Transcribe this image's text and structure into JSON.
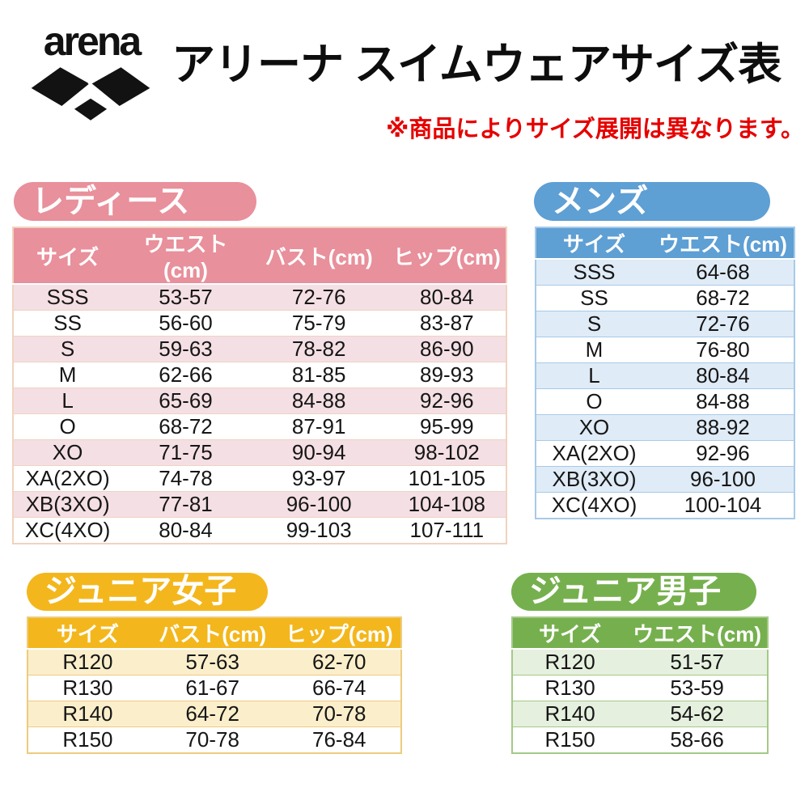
{
  "header": {
    "logo_text": "arena",
    "title": "アリーナ スイムウェアサイズ表",
    "note": "※商品によりサイズ展開は異なります。"
  },
  "colors": {
    "red": "#E60000",
    "pink": "#E8909B",
    "pink_light": "#F4DFE4",
    "pink_border": "#F0D3BF",
    "blue": "#5E9FD4",
    "blue_light": "#DFEBF6",
    "blue_border": "#A8CAE8",
    "gold": "#F3B71D",
    "gold_light": "#FBEFCB",
    "gold_border": "#EECB7E",
    "green": "#76B04E",
    "green_light": "#E6F0DF",
    "green_border": "#A3C987"
  },
  "tables": {
    "ladies": {
      "label": "レディース",
      "columns": [
        "サイズ",
        "ウエスト(cm)",
        "バスト(cm)",
        "ヒップ(cm)"
      ],
      "rows": [
        [
          "SSS",
          "53-57",
          "72-76",
          "80-84"
        ],
        [
          "SS",
          "56-60",
          "75-79",
          "83-87"
        ],
        [
          "S",
          "59-63",
          "78-82",
          "86-90"
        ],
        [
          "M",
          "62-66",
          "81-85",
          "89-93"
        ],
        [
          "L",
          "65-69",
          "84-88",
          "92-96"
        ],
        [
          "O",
          "68-72",
          "87-91",
          "95-99"
        ],
        [
          "XO",
          "71-75",
          "90-94",
          "98-102"
        ],
        [
          "XA(2XO)",
          "74-78",
          "93-97",
          "101-105"
        ],
        [
          "XB(3XO)",
          "77-81",
          "96-100",
          "104-108"
        ],
        [
          "XC(4XO)",
          "80-84",
          "99-103",
          "107-111"
        ]
      ]
    },
    "mens": {
      "label": "メンズ",
      "columns": [
        "サイズ",
        "ウエスト(cm)"
      ],
      "rows": [
        [
          "SSS",
          "64-68"
        ],
        [
          "SS",
          "68-72"
        ],
        [
          "S",
          "72-76"
        ],
        [
          "M",
          "76-80"
        ],
        [
          "L",
          "80-84"
        ],
        [
          "O",
          "84-88"
        ],
        [
          "XO",
          "88-92"
        ],
        [
          "XA(2XO)",
          "92-96"
        ],
        [
          "XB(3XO)",
          "96-100"
        ],
        [
          "XC(4XO)",
          "100-104"
        ]
      ]
    },
    "junior_girls": {
      "label": "ジュニア女子",
      "columns": [
        "サイズ",
        "バスト(cm)",
        "ヒップ(cm)"
      ],
      "rows": [
        [
          "R120",
          "57-63",
          "62-70"
        ],
        [
          "R130",
          "61-67",
          "66-74"
        ],
        [
          "R140",
          "64-72",
          "70-78"
        ],
        [
          "R150",
          "70-78",
          "76-84"
        ]
      ]
    },
    "junior_boys": {
      "label": "ジュニア男子",
      "columns": [
        "サイズ",
        "ウエスト(cm)"
      ],
      "rows": [
        [
          "R120",
          "51-57"
        ],
        [
          "R130",
          "53-59"
        ],
        [
          "R140",
          "54-62"
        ],
        [
          "R150",
          "58-66"
        ]
      ]
    }
  }
}
